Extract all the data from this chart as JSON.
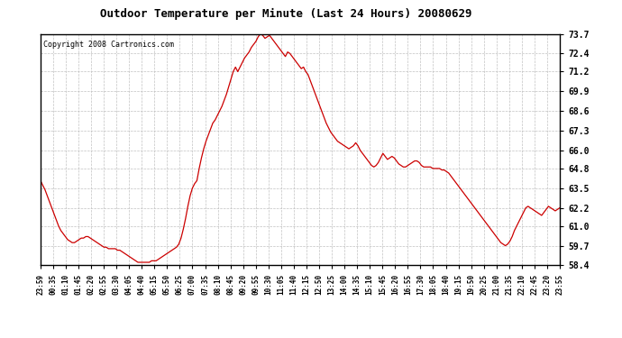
{
  "title": "Outdoor Temperature per Minute (Last 24 Hours) 20080629",
  "copyright": "Copyright 2008 Cartronics.com",
  "line_color": "#cc0000",
  "bg_color": "#ffffff",
  "plot_bg_color": "#ffffff",
  "grid_color": "#bbbbbb",
  "yticks": [
    58.4,
    59.7,
    61.0,
    62.2,
    63.5,
    64.8,
    66.0,
    67.3,
    68.6,
    69.9,
    71.2,
    72.4,
    73.7
  ],
  "ylim": [
    58.4,
    73.7
  ],
  "xtick_labels": [
    "23:59",
    "00:35",
    "01:10",
    "01:45",
    "02:20",
    "02:55",
    "03:30",
    "04:05",
    "04:40",
    "05:15",
    "05:50",
    "06:25",
    "07:00",
    "07:35",
    "08:10",
    "08:45",
    "09:20",
    "09:55",
    "10:30",
    "11:05",
    "11:40",
    "12:15",
    "12:50",
    "13:25",
    "14:00",
    "14:35",
    "15:10",
    "15:45",
    "16:20",
    "16:55",
    "17:30",
    "18:05",
    "18:40",
    "19:15",
    "19:50",
    "20:25",
    "21:00",
    "21:35",
    "22:10",
    "22:45",
    "23:20",
    "23:55"
  ],
  "temperature_data": [
    64.0,
    63.7,
    63.4,
    63.0,
    62.6,
    62.2,
    61.8,
    61.4,
    61.0,
    60.7,
    60.5,
    60.3,
    60.1,
    60.0,
    59.9,
    59.9,
    60.0,
    60.1,
    60.2,
    60.2,
    60.3,
    60.3,
    60.2,
    60.1,
    60.0,
    59.9,
    59.8,
    59.7,
    59.6,
    59.6,
    59.5,
    59.5,
    59.5,
    59.5,
    59.4,
    59.4,
    59.3,
    59.2,
    59.1,
    59.0,
    58.9,
    58.8,
    58.7,
    58.6,
    58.6,
    58.6,
    58.6,
    58.6,
    58.6,
    58.7,
    58.7,
    58.7,
    58.8,
    58.9,
    59.0,
    59.1,
    59.2,
    59.3,
    59.4,
    59.5,
    59.6,
    59.8,
    60.2,
    60.8,
    61.5,
    62.3,
    63.0,
    63.5,
    63.8,
    64.0,
    64.8,
    65.5,
    66.1,
    66.6,
    67.0,
    67.4,
    67.8,
    68.0,
    68.3,
    68.6,
    68.9,
    69.3,
    69.7,
    70.2,
    70.7,
    71.2,
    71.5,
    71.2,
    71.5,
    71.8,
    72.1,
    72.3,
    72.5,
    72.8,
    73.0,
    73.2,
    73.5,
    73.7,
    73.6,
    73.4,
    73.5,
    73.6,
    73.4,
    73.2,
    73.0,
    72.8,
    72.6,
    72.4,
    72.2,
    72.5,
    72.4,
    72.2,
    72.0,
    71.8,
    71.6,
    71.4,
    71.5,
    71.2,
    71.0,
    70.6,
    70.2,
    69.8,
    69.4,
    69.0,
    68.6,
    68.2,
    67.8,
    67.5,
    67.2,
    67.0,
    66.8,
    66.6,
    66.5,
    66.4,
    66.3,
    66.2,
    66.1,
    66.2,
    66.3,
    66.5,
    66.3,
    66.0,
    65.8,
    65.6,
    65.4,
    65.2,
    65.0,
    64.9,
    65.0,
    65.2,
    65.5,
    65.8,
    65.6,
    65.4,
    65.5,
    65.6,
    65.5,
    65.3,
    65.1,
    65.0,
    64.9,
    64.9,
    65.0,
    65.1,
    65.2,
    65.3,
    65.3,
    65.2,
    65.0,
    64.9,
    64.9,
    64.9,
    64.9,
    64.8,
    64.8,
    64.8,
    64.8,
    64.7,
    64.7,
    64.6,
    64.5,
    64.3,
    64.1,
    63.9,
    63.7,
    63.5,
    63.3,
    63.1,
    62.9,
    62.7,
    62.5,
    62.3,
    62.1,
    61.9,
    61.7,
    61.5,
    61.3,
    61.1,
    60.9,
    60.7,
    60.5,
    60.3,
    60.1,
    59.9,
    59.8,
    59.7,
    59.8,
    60.0,
    60.3,
    60.7,
    61.0,
    61.3,
    61.6,
    61.9,
    62.2,
    62.3,
    62.2,
    62.1,
    62.0,
    61.9,
    61.8,
    61.7,
    61.9,
    62.1,
    62.3,
    62.2,
    62.1,
    62.0,
    62.1,
    62.2
  ]
}
